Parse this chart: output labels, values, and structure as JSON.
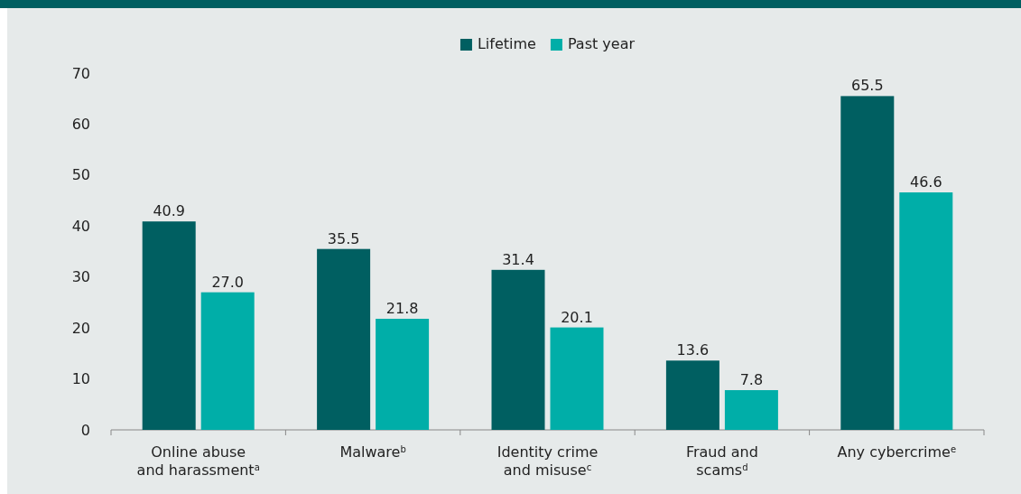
{
  "chart_data": {
    "type": "bar",
    "categories": [
      "Online abuse\nand harassment$^{a}$",
      "Malware$^{b}$",
      "Identity crime\nand misuse$^{c}$",
      "Fraud and\nscams$^{d}$",
      "Any cybercrime$^{e}$"
    ],
    "series": [
      {
        "name": "Lifetime",
        "color": "#005f61",
        "values": [
          40.9,
          35.5,
          31.4,
          13.6,
          65.5
        ],
        "value_labels": [
          "40.9",
          "35.5",
          "31.4",
          "13.6",
          "65.5"
        ]
      },
      {
        "name": "Past year",
        "color": "#00aea8",
        "values": [
          27.0,
          21.8,
          20.1,
          7.8,
          46.6
        ],
        "value_labels": [
          "27.0",
          "21.8",
          "20.1",
          "7.8",
          "46.6"
        ]
      }
    ],
    "ylim": [
      0,
      70
    ],
    "yticks": [
      0,
      10,
      20,
      30,
      40,
      50,
      60,
      70
    ],
    "grid": false,
    "legend": "top"
  }
}
